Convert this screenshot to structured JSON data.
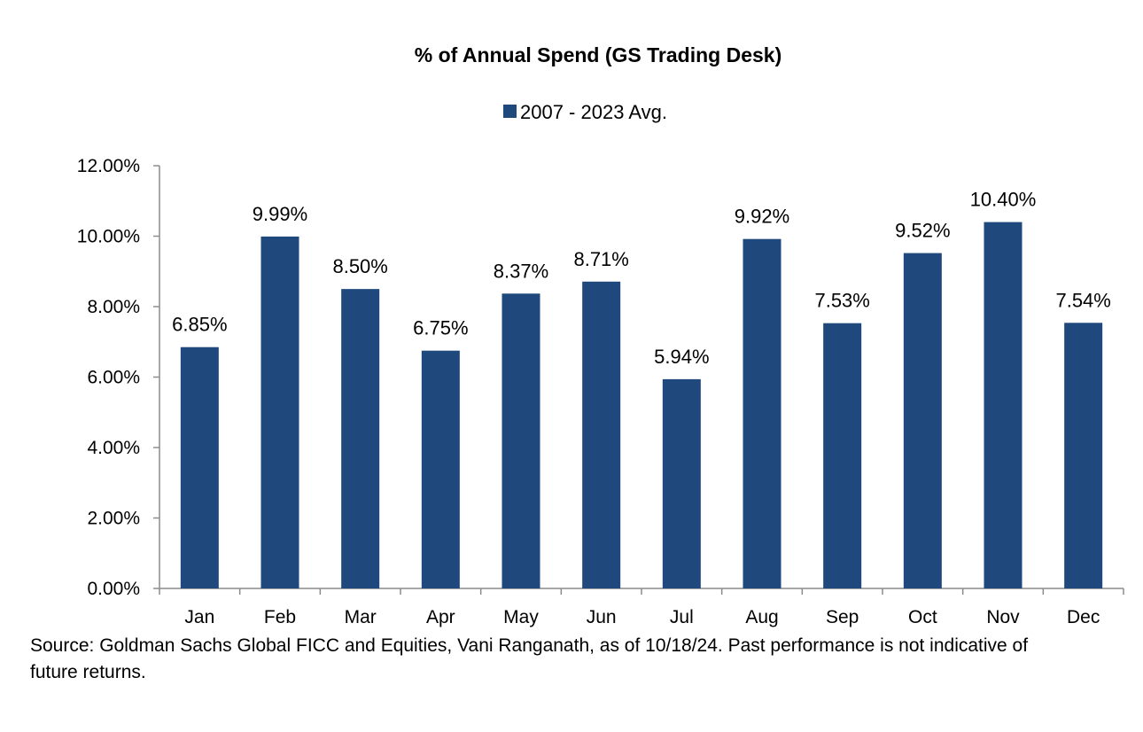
{
  "chart_data": {
    "type": "bar",
    "title": "% of Annual Spend (GS Trading Desk)",
    "xlabel": "",
    "ylabel": "",
    "categories": [
      "Jan",
      "Feb",
      "Mar",
      "Apr",
      "May",
      "Jun",
      "Jul",
      "Aug",
      "Sep",
      "Oct",
      "Nov",
      "Dec"
    ],
    "series": [
      {
        "name": "2007 - 2023 Avg.",
        "values": [
          6.85,
          9.99,
          8.5,
          6.75,
          8.37,
          8.71,
          5.94,
          9.92,
          7.53,
          9.52,
          10.4,
          7.54
        ],
        "labels": [
          "6.85%",
          "9.99%",
          "8.50%",
          "6.75%",
          "8.37%",
          "8.71%",
          "5.94%",
          "9.92%",
          "7.53%",
          "9.52%",
          "10.40%",
          "7.54%"
        ],
        "color": "#1f497d"
      }
    ],
    "ylim": [
      0,
      12
    ],
    "yticks": [
      0,
      2,
      4,
      6,
      8,
      10,
      12
    ],
    "ytick_labels": [
      "0.00%",
      "2.00%",
      "4.00%",
      "6.00%",
      "8.00%",
      "10.00%",
      "12.00%"
    ],
    "grid": false,
    "legend_position": "top-center",
    "axis_color": "#8c8c8c"
  },
  "source_note": "Source: Goldman Sachs Global FICC and Equities, Vani Ranganath, as of 10/18/24. Past performance is not indicative of future returns."
}
